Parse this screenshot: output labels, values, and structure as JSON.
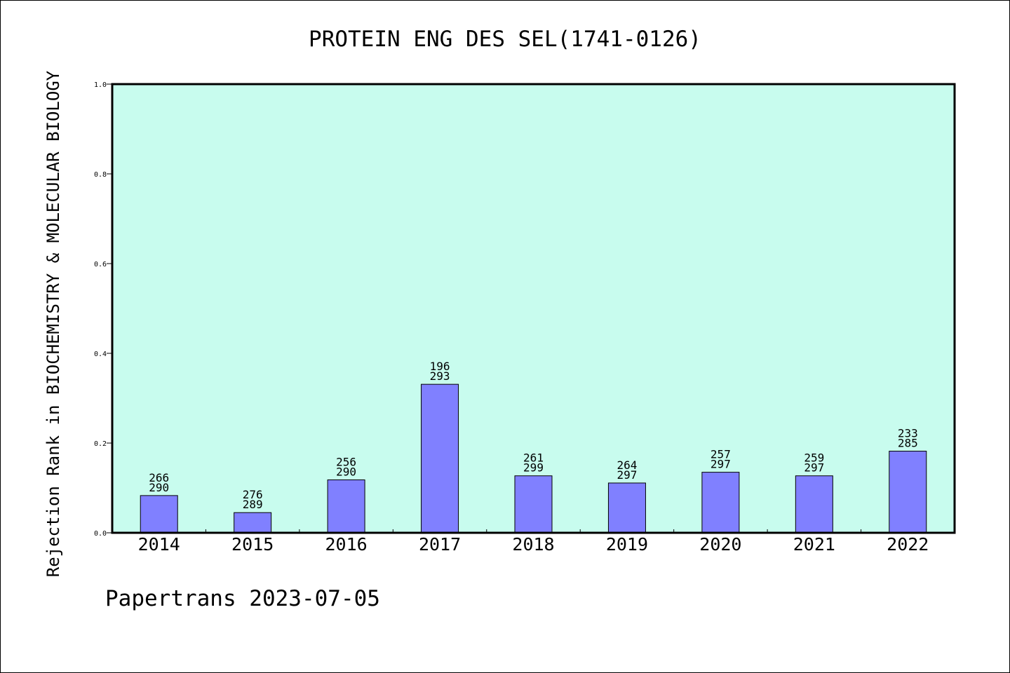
{
  "chart_data": {
    "type": "bar",
    "title": "PROTEIN ENG DES SEL(1741-0126)",
    "ylabel": "Rejection Rank in BIOCHEMISTRY & MOLECULAR BIOLOGY",
    "xlabel": "",
    "categories": [
      "2014",
      "2015",
      "2016",
      "2017",
      "2018",
      "2019",
      "2020",
      "2021",
      "2022"
    ],
    "values": [
      0.083,
      0.045,
      0.118,
      0.331,
      0.127,
      0.111,
      0.135,
      0.127,
      0.182
    ],
    "labels_top": [
      "266",
      "276",
      "256",
      "196",
      "261",
      "264",
      "257",
      "259",
      "233"
    ],
    "labels_bottom": [
      "290",
      "289",
      "290",
      "293",
      "299",
      "297",
      "297",
      "297",
      "285"
    ],
    "ylim": [
      0,
      1.0
    ],
    "yticks": [
      "0.0",
      "0.2",
      "0.4",
      "0.6",
      "0.8",
      "1.0"
    ],
    "grid": false,
    "colors": {
      "plot_bg": "#c8fcee",
      "bar_fill": "#8080ff",
      "bar_stroke": "#000000"
    }
  },
  "footer": "Papertrans 2023-07-05"
}
